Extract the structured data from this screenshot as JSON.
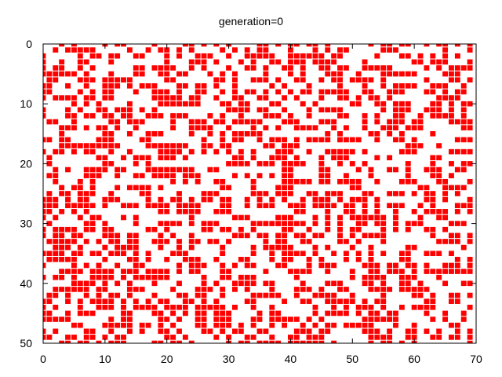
{
  "chart_data": {
    "type": "heatmap",
    "title": "generation=0",
    "xlabel": "",
    "ylabel": "",
    "xlim": [
      0,
      70
    ],
    "ylim": [
      0,
      50
    ],
    "y_inverted": true,
    "grid": false,
    "x_ticks": [
      0,
      10,
      20,
      30,
      40,
      50,
      60,
      70
    ],
    "y_ticks": [
      0,
      10,
      20,
      30,
      40,
      50
    ],
    "x_tick_labels": [
      "0",
      "10",
      "20",
      "30",
      "40",
      "50",
      "60",
      "70"
    ],
    "y_tick_labels": [
      "0",
      "10",
      "20",
      "30",
      "40",
      "50"
    ],
    "cell_color": "#ff0000",
    "background_color": "#ffffff",
    "grid_cols": 70,
    "grid_rows": 51,
    "live_fraction": 0.45,
    "cells_note": "random initial live cells of a cellular automaton grid (generation 0); individual cells approximated"
  }
}
